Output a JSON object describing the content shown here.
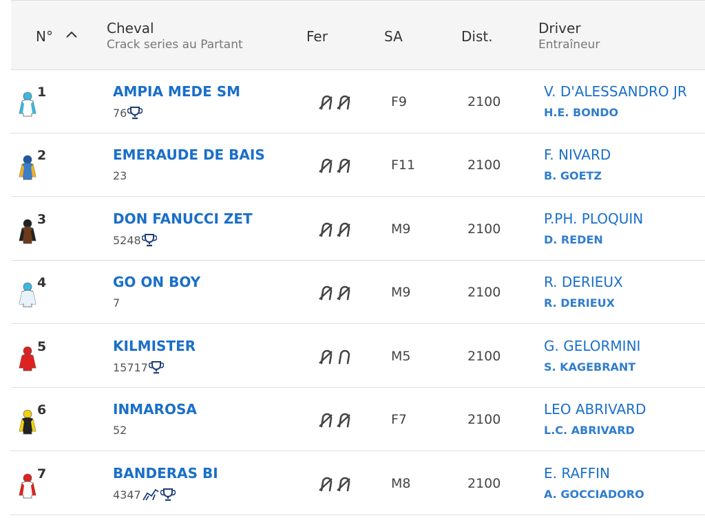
{
  "header": {
    "number": "N°",
    "horse": "Cheval",
    "horse_sub": "Crack series au Partant",
    "fer": "Fer",
    "sa": "SA",
    "dist": "Dist.",
    "driver": "Driver",
    "trainer": "Entraîneur"
  },
  "rows": [
    {
      "number": "1",
      "name": "AMPIA MEDE SM",
      "info": "76",
      "sa": "F9",
      "dist": "2100",
      "driver": "V. D'ALESSANDRO JR",
      "trainer": "H.E. BONDO"
    },
    {
      "number": "2",
      "name": "EMERAUDE DE BAIS",
      "info": "23",
      "sa": "F11",
      "dist": "2100",
      "driver": "F. NIVARD",
      "trainer": "B. GOETZ"
    },
    {
      "number": "3",
      "name": "DON FANUCCI ZET",
      "info": "5248",
      "sa": "M9",
      "dist": "2100",
      "driver": "P.PH. PLOQUIN",
      "trainer": "D. REDEN"
    },
    {
      "number": "4",
      "name": "GO ON BOY",
      "info": "7",
      "sa": "M9",
      "dist": "2100",
      "driver": "R. DERIEUX",
      "trainer": "R. DERIEUX"
    },
    {
      "number": "5",
      "name": "KILMISTER",
      "info": "15717",
      "sa": "M5",
      "dist": "2100",
      "driver": "G. GELORMINI",
      "trainer": "S. KAGEBRANT"
    },
    {
      "number": "6",
      "name": "INMAROSA",
      "info": "52",
      "sa": "F7",
      "dist": "2100",
      "driver": "LEO ABRIVARD",
      "trainer": "L.C. ABRIVARD"
    },
    {
      "number": "7",
      "name": "BANDERAS BI",
      "info": "4347",
      "sa": "M8",
      "dist": "2100",
      "driver": "E. RAFFIN",
      "trainer": "A. GOCCIADORO"
    }
  ]
}
